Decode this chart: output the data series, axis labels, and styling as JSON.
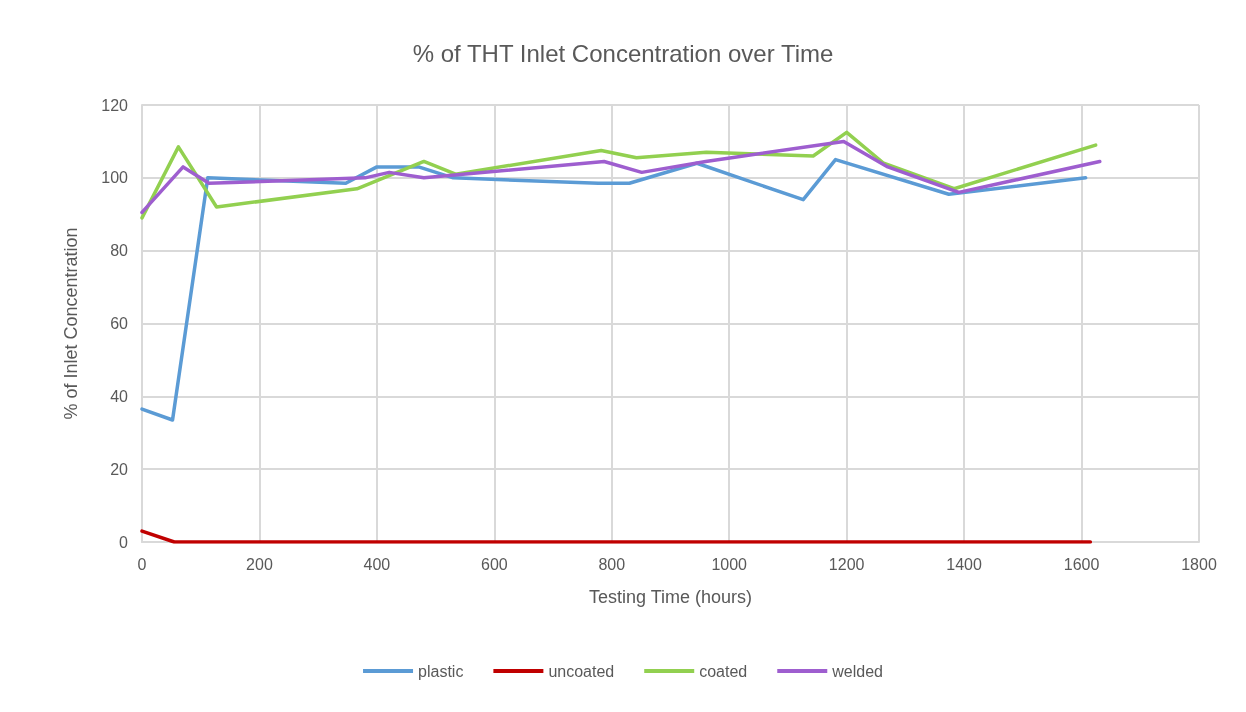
{
  "chart_data": {
    "type": "line",
    "title": "% of THT Inlet Concentration over Time",
    "xlabel": "Testing Time (hours)",
    "ylabel": "% of Inlet Concentration",
    "xlim": [
      0,
      1800
    ],
    "xticks": [
      0,
      200,
      400,
      600,
      800,
      1000,
      1200,
      1400,
      1600,
      1800
    ],
    "ylim": [
      0,
      120
    ],
    "yticks": [
      0,
      20,
      40,
      60,
      80,
      100,
      120
    ],
    "grid": true,
    "legend": "bottom",
    "marker": "none",
    "line_style": "solid",
    "series": [
      {
        "name": "plastic",
        "color": "#5b9bd5",
        "x": [
          0,
          52,
          112,
          347,
          400,
          471,
          530,
          777,
          830,
          945,
          1126,
          1181,
          1374,
          1607
        ],
        "values": [
          36.5,
          33.5,
          100,
          98.5,
          103,
          103,
          100,
          98.5,
          98.5,
          104,
          94,
          105,
          95.5,
          100
        ]
      },
      {
        "name": "uncoated",
        "color": "#c00000",
        "x": [
          0,
          55,
          1615
        ],
        "values": [
          3,
          0,
          0
        ]
      },
      {
        "name": "coated",
        "color": "#92d050",
        "x": [
          0,
          62,
          127,
          366,
          480,
          534,
          782,
          842,
          961,
          1143,
          1200,
          1263,
          1383,
          1624
        ],
        "values": [
          89,
          108.5,
          92,
          97,
          104.5,
          101,
          107.5,
          105.5,
          107,
          106,
          112.5,
          104,
          97,
          109
        ]
      },
      {
        "name": "welded",
        "color": "#9e5ecf",
        "x": [
          0,
          70,
          114,
          380,
          421,
          480,
          787,
          851,
          960,
          1195,
          1270,
          1391,
          1631
        ],
        "values": [
          90.5,
          103,
          98.5,
          100,
          101.5,
          100,
          104.5,
          101.5,
          104.5,
          110,
          103,
          96,
          104.5
        ]
      }
    ]
  }
}
